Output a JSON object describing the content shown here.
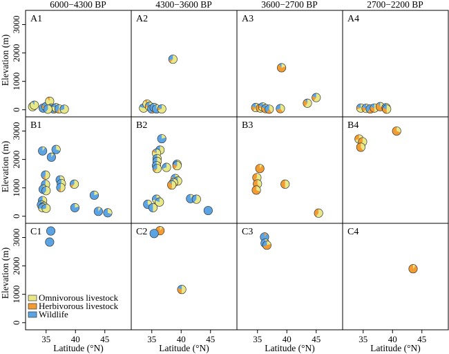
{
  "colors": {
    "omnivorous": "#E8E886",
    "herbivorous": "#F29B30",
    "wildlife": "#5BA3E2"
  },
  "chart_data": {
    "type": "scatter",
    "xlabel": "Latitude (°N)",
    "ylabel": "Elevation (m)",
    "xlim": [
      31.5,
      49.5
    ],
    "ylim": [
      -250,
      3500
    ],
    "xticks": [
      35,
      40,
      45
    ],
    "yticks": [
      0,
      1000,
      2000,
      3000
    ],
    "columns": [
      "6000−4300 BP",
      "4300−3600 BP",
      "3600−2700 BP",
      "2700−2200 BP"
    ],
    "legend": {
      "position": "bottom-left of panel C1",
      "entries": [
        {
          "key": "omnivorous",
          "label": "Omnivorous livestock"
        },
        {
          "key": "herbivorous",
          "label": "Herbivorous livestock"
        },
        {
          "key": "wildlife",
          "label": "Wildlife"
        }
      ]
    },
    "panels": [
      {
        "label": "A1",
        "row": 0,
        "col": 0,
        "points": [
          {
            "lat": 32.7,
            "elev": 110,
            "o": 0.9,
            "h": 0.0,
            "w": 0.1
          },
          {
            "lat": 33.0,
            "elev": 160,
            "o": 0.9,
            "h": 0.0,
            "w": 0.1
          },
          {
            "lat": 34.5,
            "elev": 60,
            "o": 0.3,
            "h": 0.0,
            "w": 0.7
          },
          {
            "lat": 35.0,
            "elev": 110,
            "o": 0.7,
            "h": 0.1,
            "w": 0.2
          },
          {
            "lat": 35.6,
            "elev": 300,
            "o": 0.9,
            "h": 0.1,
            "w": 0.0
          },
          {
            "lat": 35.9,
            "elev": 60,
            "o": 0.5,
            "h": 0.1,
            "w": 0.4
          },
          {
            "lat": 36.3,
            "elev": 30,
            "o": 0.4,
            "h": 0.1,
            "w": 0.5
          },
          {
            "lat": 36.7,
            "elev": 70,
            "o": 0.8,
            "h": 0.0,
            "w": 0.2
          },
          {
            "lat": 37.2,
            "elev": 30,
            "o": 0.5,
            "h": 0.1,
            "w": 0.4
          },
          {
            "lat": 38.1,
            "elev": 20,
            "o": 0.7,
            "h": 0.0,
            "w": 0.3
          },
          {
            "lat": 35.3,
            "elev": 20,
            "o": 0.6,
            "h": 0.0,
            "w": 0.4
          }
        ]
      },
      {
        "label": "A2",
        "row": 0,
        "col": 1,
        "points": [
          {
            "lat": 33.6,
            "elev": 60,
            "o": 0.8,
            "h": 0.0,
            "w": 0.2
          },
          {
            "lat": 34.2,
            "elev": 200,
            "o": 0.9,
            "h": 0.1,
            "w": 0.0
          },
          {
            "lat": 34.6,
            "elev": 120,
            "o": 0.7,
            "h": 0.1,
            "w": 0.2
          },
          {
            "lat": 35.0,
            "elev": 30,
            "o": 0.4,
            "h": 0.1,
            "w": 0.5
          },
          {
            "lat": 35.4,
            "elev": 80,
            "o": 0.5,
            "h": 0.1,
            "w": 0.4
          },
          {
            "lat": 35.8,
            "elev": 30,
            "o": 0.2,
            "h": 0.0,
            "w": 0.8
          },
          {
            "lat": 36.7,
            "elev": 30,
            "o": 0.7,
            "h": 0.1,
            "w": 0.2
          },
          {
            "lat": 38.6,
            "elev": 1780,
            "o": 0.6,
            "h": 0.1,
            "w": 0.3
          }
        ]
      },
      {
        "label": "A3",
        "row": 0,
        "col": 2,
        "points": [
          {
            "lat": 34.7,
            "elev": 80,
            "o": 0.6,
            "h": 0.2,
            "w": 0.2
          },
          {
            "lat": 35.5,
            "elev": 60,
            "o": 0.6,
            "h": 0.3,
            "w": 0.1
          },
          {
            "lat": 35.9,
            "elev": 100,
            "o": 0.7,
            "h": 0.1,
            "w": 0.2
          },
          {
            "lat": 36.4,
            "elev": 40,
            "o": 0.3,
            "h": 0.5,
            "w": 0.2
          },
          {
            "lat": 37.0,
            "elev": 20,
            "o": 0.4,
            "h": 0.2,
            "w": 0.4
          },
          {
            "lat": 38.9,
            "elev": 40,
            "o": 0.4,
            "h": 0.3,
            "w": 0.3
          },
          {
            "lat": 39.1,
            "elev": 1480,
            "o": 0.2,
            "h": 0.7,
            "w": 0.1
          },
          {
            "lat": 43.5,
            "elev": 230,
            "o": 0.6,
            "h": 0.3,
            "w": 0.1
          },
          {
            "lat": 45.0,
            "elev": 430,
            "o": 0.6,
            "h": 0.2,
            "w": 0.2
          }
        ]
      },
      {
        "label": "A4",
        "row": 0,
        "col": 3,
        "points": [
          {
            "lat": 34.6,
            "elev": 60,
            "o": 0.7,
            "h": 0.1,
            "w": 0.2
          },
          {
            "lat": 35.5,
            "elev": 50,
            "o": 0.6,
            "h": 0.2,
            "w": 0.2
          },
          {
            "lat": 36.2,
            "elev": 30,
            "o": 0.4,
            "h": 0.2,
            "w": 0.4
          },
          {
            "lat": 36.9,
            "elev": 60,
            "o": 0.5,
            "h": 0.3,
            "w": 0.2
          },
          {
            "lat": 37.9,
            "elev": 110,
            "o": 0.3,
            "h": 0.6,
            "w": 0.1
          },
          {
            "lat": 38.9,
            "elev": 70,
            "o": 0.6,
            "h": 0.2,
            "w": 0.2
          },
          {
            "lat": 39.0,
            "elev": 20,
            "o": 0.5,
            "h": 0.3,
            "w": 0.2
          }
        ]
      },
      {
        "label": "B1",
        "row": 1,
        "col": 0,
        "points": [
          {
            "lat": 34.4,
            "elev": 2300,
            "o": 0.1,
            "h": 0.0,
            "w": 0.9
          },
          {
            "lat": 36.7,
            "elev": 2350,
            "o": 0.3,
            "h": 0.0,
            "w": 0.7
          },
          {
            "lat": 35.9,
            "elev": 2080,
            "o": 0.1,
            "h": 0.0,
            "w": 0.9
          },
          {
            "lat": 34.9,
            "elev": 1450,
            "o": 0.5,
            "h": 0.1,
            "w": 0.4
          },
          {
            "lat": 37.4,
            "elev": 1280,
            "o": 0.5,
            "h": 0.1,
            "w": 0.4
          },
          {
            "lat": 34.9,
            "elev": 1120,
            "o": 0.5,
            "h": 0.1,
            "w": 0.4
          },
          {
            "lat": 37.6,
            "elev": 1150,
            "o": 0.5,
            "h": 0.1,
            "w": 0.4
          },
          {
            "lat": 39.8,
            "elev": 1130,
            "o": 0.6,
            "h": 0.1,
            "w": 0.3
          },
          {
            "lat": 37.5,
            "elev": 1010,
            "o": 0.5,
            "h": 0.1,
            "w": 0.4
          },
          {
            "lat": 34.5,
            "elev": 950,
            "o": 0.3,
            "h": 0.0,
            "w": 0.7
          },
          {
            "lat": 35.0,
            "elev": 900,
            "o": 0.6,
            "h": 0.0,
            "w": 0.4
          },
          {
            "lat": 43.2,
            "elev": 740,
            "o": 0.2,
            "h": 0.0,
            "w": 0.8
          },
          {
            "lat": 34.4,
            "elev": 550,
            "o": 0.6,
            "h": 0.0,
            "w": 0.4
          },
          {
            "lat": 34.2,
            "elev": 400,
            "o": 0.7,
            "h": 0.0,
            "w": 0.3
          },
          {
            "lat": 34.6,
            "elev": 350,
            "o": 0.6,
            "h": 0.0,
            "w": 0.4
          },
          {
            "lat": 34.4,
            "elev": 300,
            "o": 0.7,
            "h": 0.0,
            "w": 0.3
          },
          {
            "lat": 35.0,
            "elev": 280,
            "o": 0.7,
            "h": 0.0,
            "w": 0.3
          },
          {
            "lat": 39.9,
            "elev": 300,
            "o": 0.2,
            "h": 0.0,
            "w": 0.8
          },
          {
            "lat": 43.9,
            "elev": 170,
            "o": 0.1,
            "h": 0.0,
            "w": 0.9
          },
          {
            "lat": 45.5,
            "elev": 120,
            "o": 0.3,
            "h": 0.0,
            "w": 0.7
          }
        ]
      },
      {
        "label": "B2",
        "row": 1,
        "col": 1,
        "points": [
          {
            "lat": 36.7,
            "elev": 2730,
            "o": 0.2,
            "h": 0.0,
            "w": 0.8
          },
          {
            "lat": 36.4,
            "elev": 2330,
            "o": 0.5,
            "h": 0.1,
            "w": 0.4
          },
          {
            "lat": 35.8,
            "elev": 2220,
            "o": 0.8,
            "h": 0.1,
            "w": 0.1
          },
          {
            "lat": 35.9,
            "elev": 2030,
            "o": 0.3,
            "h": 0.1,
            "w": 0.6
          },
          {
            "lat": 35.9,
            "elev": 1930,
            "o": 0.3,
            "h": 0.1,
            "w": 0.6
          },
          {
            "lat": 39.3,
            "elev": 1830,
            "o": 0.4,
            "h": 0.3,
            "w": 0.3
          },
          {
            "lat": 39.3,
            "elev": 1780,
            "o": 0.6,
            "h": 0.2,
            "w": 0.2
          },
          {
            "lat": 35.8,
            "elev": 1780,
            "o": 0.4,
            "h": 0.1,
            "w": 0.5
          },
          {
            "lat": 37.5,
            "elev": 1720,
            "o": 0.7,
            "h": 0.0,
            "w": 0.3
          },
          {
            "lat": 35.9,
            "elev": 1680,
            "o": 0.6,
            "h": 0.1,
            "w": 0.3
          },
          {
            "lat": 39.0,
            "elev": 1330,
            "o": 0.4,
            "h": 0.4,
            "w": 0.2
          },
          {
            "lat": 39.4,
            "elev": 1240,
            "o": 0.5,
            "h": 0.4,
            "w": 0.1
          },
          {
            "lat": 38.7,
            "elev": 1180,
            "o": 0.3,
            "h": 0.6,
            "w": 0.1
          },
          {
            "lat": 38.4,
            "elev": 1100,
            "o": 0.5,
            "h": 0.4,
            "w": 0.1
          },
          {
            "lat": 41.6,
            "elev": 620,
            "o": 0.1,
            "h": 0.0,
            "w": 0.9
          },
          {
            "lat": 42.6,
            "elev": 600,
            "o": 0.6,
            "h": 0.0,
            "w": 0.4
          },
          {
            "lat": 35.8,
            "elev": 600,
            "o": 0.7,
            "h": 0.0,
            "w": 0.3
          },
          {
            "lat": 36.3,
            "elev": 500,
            "o": 0.8,
            "h": 0.0,
            "w": 0.2
          },
          {
            "lat": 34.3,
            "elev": 420,
            "o": 0.3,
            "h": 0.0,
            "w": 0.7
          },
          {
            "lat": 35.2,
            "elev": 300,
            "o": 0.5,
            "h": 0.0,
            "w": 0.5
          },
          {
            "lat": 44.6,
            "elev": 200,
            "o": 0.0,
            "h": 0.0,
            "w": 1.0
          }
        ]
      },
      {
        "label": "B3",
        "row": 1,
        "col": 2,
        "points": [
          {
            "lat": 35.4,
            "elev": 1680,
            "o": 0.1,
            "h": 0.9,
            "w": 0.0
          },
          {
            "lat": 34.9,
            "elev": 1360,
            "o": 0.6,
            "h": 0.4,
            "w": 0.0
          },
          {
            "lat": 35.0,
            "elev": 1140,
            "o": 0.4,
            "h": 0.6,
            "w": 0.0
          },
          {
            "lat": 39.7,
            "elev": 1130,
            "o": 0.5,
            "h": 0.5,
            "w": 0.0
          },
          {
            "lat": 34.8,
            "elev": 920,
            "o": 0.3,
            "h": 0.7,
            "w": 0.0
          },
          {
            "lat": 45.4,
            "elev": 110,
            "o": 0.6,
            "h": 0.4,
            "w": 0.0
          }
        ]
      },
      {
        "label": "B4",
        "row": 1,
        "col": 3,
        "points": [
          {
            "lat": 40.7,
            "elev": 3000,
            "o": 0.3,
            "h": 0.7,
            "w": 0.0
          },
          {
            "lat": 34.3,
            "elev": 2720,
            "o": 0.7,
            "h": 0.3,
            "w": 0.0
          },
          {
            "lat": 34.9,
            "elev": 2620,
            "o": 0.6,
            "h": 0.4,
            "w": 0.0
          },
          {
            "lat": 34.6,
            "elev": 2430,
            "o": 0.4,
            "h": 0.6,
            "w": 0.0
          }
        ]
      },
      {
        "label": "C1",
        "row": 2,
        "col": 0,
        "points": [
          {
            "lat": 35.8,
            "elev": 3230,
            "o": 0.0,
            "h": 0.0,
            "w": 1.0
          },
          {
            "lat": 35.6,
            "elev": 2840,
            "o": 0.0,
            "h": 0.0,
            "w": 1.0
          }
        ]
      },
      {
        "label": "C2",
        "row": 2,
        "col": 1,
        "points": [
          {
            "lat": 36.4,
            "elev": 3240,
            "o": 0.1,
            "h": 0.9,
            "w": 0.0
          },
          {
            "lat": 35.4,
            "elev": 3140,
            "o": 0.0,
            "h": 0.0,
            "w": 1.0
          },
          {
            "lat": 40.1,
            "elev": 1170,
            "o": 0.5,
            "h": 0.3,
            "w": 0.2
          }
        ]
      },
      {
        "label": "C3",
        "row": 2,
        "col": 2,
        "points": [
          {
            "lat": 36.2,
            "elev": 3020,
            "o": 0.0,
            "h": 0.1,
            "w": 0.9
          },
          {
            "lat": 36.3,
            "elev": 2800,
            "o": 0.1,
            "h": 0.5,
            "w": 0.4
          },
          {
            "lat": 36.6,
            "elev": 2730,
            "o": 0.2,
            "h": 0.5,
            "w": 0.3
          }
        ]
      },
      {
        "label": "C4",
        "row": 2,
        "col": 3,
        "points": [
          {
            "lat": 43.5,
            "elev": 1900,
            "o": 0.1,
            "h": 0.9,
            "w": 0.0
          }
        ]
      }
    ]
  }
}
